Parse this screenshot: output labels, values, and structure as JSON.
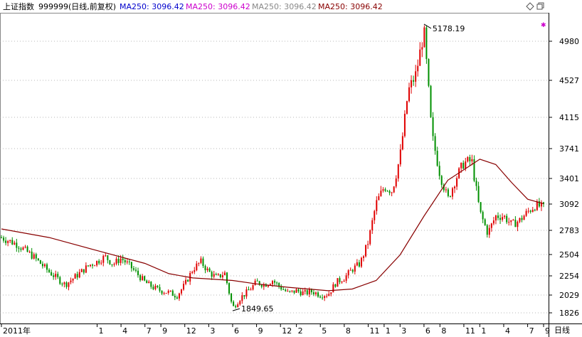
{
  "header": {
    "index_name": "上证指数",
    "code_label": "999999(日线,前复权)",
    "ma_items": [
      {
        "label": "MA250:",
        "value": "3096.42",
        "color": "#0000cc"
      },
      {
        "label": "MA250:",
        "value": "3096.42",
        "color": "#cc00cc"
      },
      {
        "label": "MA250:",
        "value": "3096.42",
        "color": "#888888"
      },
      {
        "label": "MA250:",
        "value": "3096.42",
        "color": "#880000"
      }
    ],
    "icons": [
      "diamond-icon",
      "restore-window-icon"
    ]
  },
  "colors": {
    "up": "#e00000",
    "down": "#009000",
    "ma": "#880000",
    "grid": "#a0a0a0",
    "axis": "#000000"
  },
  "footer": {
    "period_label": "日线"
  },
  "chart_data": {
    "type": "candlestick",
    "title": "上证指数",
    "series": [
      {
        "name": "MA250",
        "last_value": 3096.42
      }
    ],
    "ylim": [
      1826,
      5300
    ],
    "y_ticks": [
      4980,
      4527,
      4115,
      3741,
      3401,
      3092,
      2783,
      2504,
      2254,
      2029,
      1826
    ],
    "x_ticks": [
      {
        "label": "2011年",
        "date": "2011-01"
      },
      {
        "label": "1",
        "date": "2012-01"
      },
      {
        "label": "4",
        "date": "2012-04"
      },
      {
        "label": "7",
        "date": "2012-07"
      },
      {
        "label": "9",
        "date": "2012-09"
      },
      {
        "label": "12",
        "date": "2012-12"
      },
      {
        "label": "3",
        "date": "2013-03"
      },
      {
        "label": "6",
        "date": "2013-06"
      },
      {
        "label": "9",
        "date": "2013-09"
      },
      {
        "label": "12",
        "date": "2013-12"
      },
      {
        "label": "2",
        "date": "2014-02"
      },
      {
        "label": "5",
        "date": "2014-05"
      },
      {
        "label": "8",
        "date": "2014-08"
      },
      {
        "label": "11",
        "date": "2014-11"
      },
      {
        "label": "1",
        "date": "2015-01"
      },
      {
        "label": "3",
        "date": "2015-03"
      },
      {
        "label": "6",
        "date": "2015-06"
      },
      {
        "label": "8",
        "date": "2015-08"
      },
      {
        "label": "11",
        "date": "2015-11"
      },
      {
        "label": "1",
        "date": "2016-01"
      },
      {
        "label": "4",
        "date": "2016-04"
      },
      {
        "label": "7",
        "date": "2016-07"
      },
      {
        "label": "9",
        "date": "2016-09"
      }
    ],
    "price_path": [
      [
        "2011-01",
        2700
      ],
      [
        "2011-03",
        2620
      ],
      [
        "2011-05",
        2480
      ],
      [
        "2011-07",
        2300
      ],
      [
        "2011-09",
        2150
      ],
      [
        "2011-11",
        2300
      ],
      [
        "2011-12",
        2380
      ],
      [
        "2012-01",
        2420
      ],
      [
        "2012-02",
        2480
      ],
      [
        "2012-03",
        2390
      ],
      [
        "2012-04",
        2460
      ],
      [
        "2012-05",
        2380
      ],
      [
        "2012-06",
        2280
      ],
      [
        "2012-07",
        2180
      ],
      [
        "2012-08",
        2120
      ],
      [
        "2012-09",
        2080
      ],
      [
        "2012-10",
        2060
      ],
      [
        "2012-11",
        2020
      ],
      [
        "2012-12",
        2150
      ],
      [
        "2013-01",
        2330
      ],
      [
        "2013-02",
        2420
      ],
      [
        "2013-03",
        2300
      ],
      [
        "2013-04",
        2230
      ],
      [
        "2013-05",
        2290
      ],
      [
        "2013-06",
        1880
      ],
      [
        "2013-07",
        2000
      ],
      [
        "2013-08",
        2080
      ],
      [
        "2013-09",
        2180
      ],
      [
        "2013-10",
        2150
      ],
      [
        "2013-11",
        2200
      ],
      [
        "2013-12",
        2120
      ],
      [
        "2014-01",
        2050
      ],
      [
        "2014-02",
        2080
      ],
      [
        "2014-03",
        2050
      ],
      [
        "2014-04",
        2070
      ],
      [
        "2014-05",
        2030
      ],
      [
        "2014-06",
        2040
      ],
      [
        "2014-07",
        2180
      ],
      [
        "2014-08",
        2230
      ],
      [
        "2014-09",
        2330
      ],
      [
        "2014-10",
        2400
      ],
      [
        "2014-11",
        2650
      ],
      [
        "2014-12",
        3100
      ],
      [
        "2015-01",
        3300
      ],
      [
        "2015-02",
        3250
      ],
      [
        "2015-03",
        3650
      ],
      [
        "2015-04",
        4400
      ],
      [
        "2015-05",
        4600
      ],
      [
        "2015-06",
        5100
      ],
      [
        "2015-07",
        3900
      ],
      [
        "2015-08",
        3450
      ],
      [
        "2015-09",
        3150
      ],
      [
        "2015-10",
        3400
      ],
      [
        "2015-11",
        3580
      ],
      [
        "2015-12",
        3600
      ],
      [
        "2016-01",
        3000
      ],
      [
        "2016-02",
        2750
      ],
      [
        "2016-03",
        2950
      ],
      [
        "2016-04",
        2950
      ],
      [
        "2016-05",
        2850
      ],
      [
        "2016-06",
        2900
      ],
      [
        "2016-07",
        3000
      ],
      [
        "2016-08",
        3080
      ],
      [
        "2016-09",
        3050
      ]
    ],
    "ma250_path": [
      [
        "2011-01",
        2800
      ],
      [
        "2011-07",
        2700
      ],
      [
        "2012-01",
        2550
      ],
      [
        "2012-07",
        2400
      ],
      [
        "2012-10",
        2280
      ],
      [
        "2013-01",
        2230
      ],
      [
        "2013-06",
        2200
      ],
      [
        "2013-09",
        2160
      ],
      [
        "2014-01",
        2120
      ],
      [
        "2014-06",
        2080
      ],
      [
        "2014-09",
        2100
      ],
      [
        "2014-12",
        2200
      ],
      [
        "2015-03",
        2500
      ],
      [
        "2015-06",
        2950
      ],
      [
        "2015-09",
        3380
      ],
      [
        "2015-12",
        3560
      ],
      [
        "2016-01",
        3620
      ],
      [
        "2016-03",
        3560
      ],
      [
        "2016-05",
        3350
      ],
      [
        "2016-07",
        3150
      ],
      [
        "2016-09",
        3096
      ]
    ],
    "annotations": [
      {
        "label": "5178.19",
        "date": "2015-06",
        "value": 5178.19,
        "type": "high"
      },
      {
        "label": "1849.65",
        "date": "2013-06",
        "value": 1849.65,
        "type": "low"
      }
    ],
    "grid": true
  }
}
